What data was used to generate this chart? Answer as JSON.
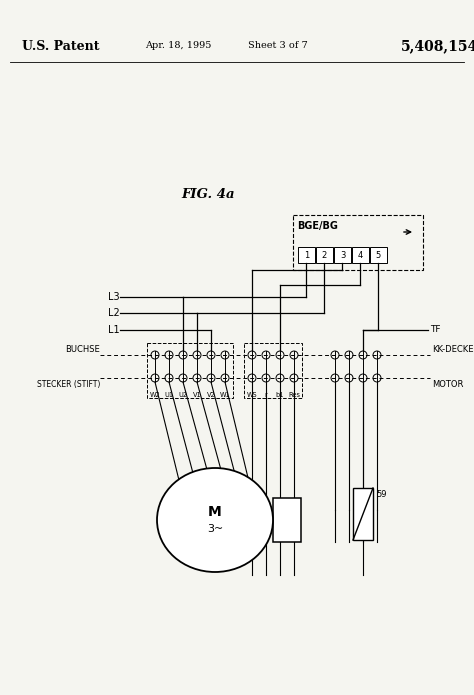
{
  "bg_color": "#f5f5f0",
  "header_text": "U.S. Patent",
  "header_date": "Apr. 18, 1995",
  "header_sheet": "Sheet 3 of 7",
  "header_patent": "5,408,154",
  "fig_label": "FIG. 4a",
  "bge_label": "BGE/BG",
  "connector_nums": [
    "1",
    "2",
    "3",
    "4",
    "5"
  ],
  "buchse_label": "BUCHSE",
  "stecker_label": "STECKER (STIFT)",
  "kk_deckel_label": "KK-DECKEL",
  "motor_label": "MOTOR",
  "tf_label": "TF",
  "label_59": "59",
  "motor_text1": "M",
  "motor_text2": "3~",
  "l_labels": [
    "L3",
    "L2",
    "L1"
  ],
  "stecker_pin_labels": [
    "W2",
    "U1",
    "U2",
    "V1",
    "V2",
    "W1",
    "WS",
    "r",
    "b1",
    "Res"
  ]
}
